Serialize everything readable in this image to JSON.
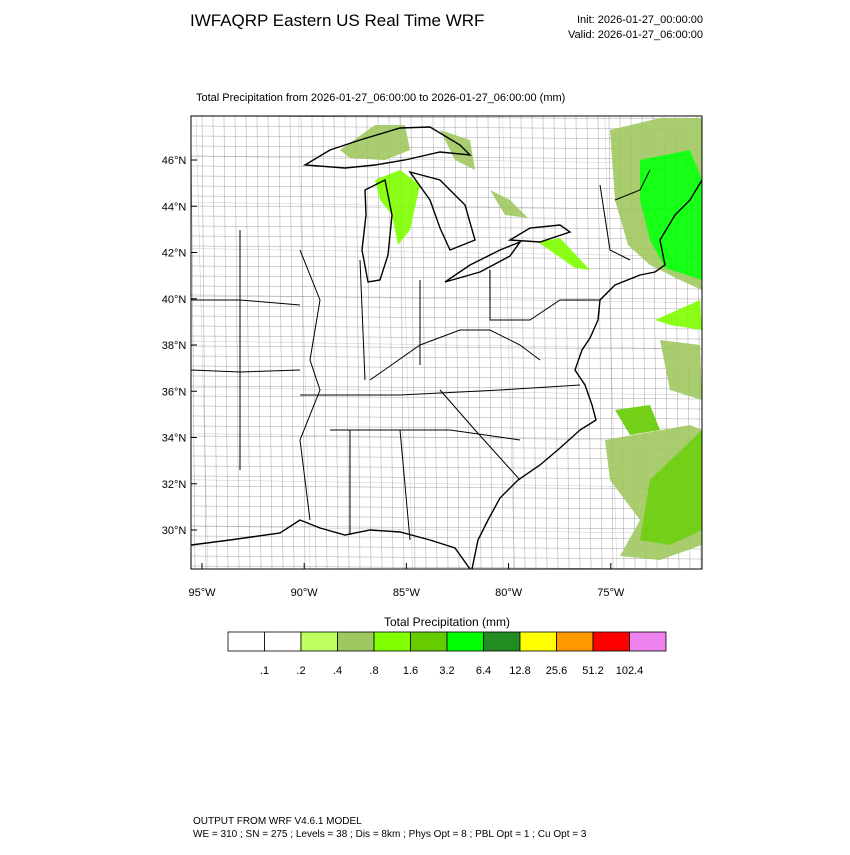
{
  "header": {
    "title": "IWFAQRP Eastern US Real Time WRF",
    "init": "Init: 2026-01-27_00:00:00",
    "valid": "Valid: 2026-01-27_06:00:00"
  },
  "map": {
    "subtitle": "Total Precipitation from 2026-01-27_06:00:00 to 2026-01-27_06:00:00   (mm)",
    "lat_labels": [
      "46°N",
      "44°N",
      "42°N",
      "40°N",
      "38°N",
      "36°N",
      "34°N",
      "32°N",
      "30°N"
    ],
    "lon_labels": [
      "95°W",
      "90°W",
      "85°W",
      "80°W",
      "75°W"
    ]
  },
  "colorbar": {
    "title": "Total Precipitation  (mm)",
    "labels": [
      ".1",
      ".2",
      ".4",
      ".8",
      "1.6",
      "3.2",
      "6.4",
      "12.8",
      "25.6",
      "51.2",
      "102.4"
    ],
    "colors": [
      "#ffffff",
      "#ffffff",
      "#bfff5f",
      "#a0c860",
      "#7fff00",
      "#66cc00",
      "#00ff00",
      "#228b22",
      "#ffff00",
      "#ff9900",
      "#ff0000",
      "#ee82ee"
    ]
  },
  "footer": {
    "line1": "OUTPUT FROM WRF V4.6.1 MODEL",
    "line2": "WE = 310 ; SN = 275 ; Levels = 38 ; Dis = 8km ; Phys Opt = 8 ; PBL Opt = 1 ; Cu Opt = 3"
  }
}
